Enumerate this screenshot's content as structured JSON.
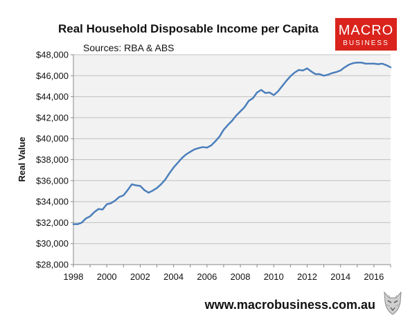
{
  "logo": {
    "line1": "MACRO",
    "line2": "BUSINESS",
    "bg_color": "#d9231c"
  },
  "footer": {
    "url": "www.macrobusiness.com.au"
  },
  "colors": {
    "line": "#4a7ebb",
    "plot_bg": "#f2f2f2",
    "grid": "#c0c0c0"
  },
  "chart_data": {
    "type": "line",
    "title": "Real Household Disposable Income per Capita",
    "subtitle": "Sources: RBA & ABS",
    "ylabel": "Real Value",
    "xlabel": "",
    "xlim": [
      1998,
      2017
    ],
    "ylim": [
      28000,
      48000
    ],
    "x_ticks": [
      1998,
      2000,
      2002,
      2004,
      2006,
      2008,
      2010,
      2012,
      2014,
      2016
    ],
    "y_ticks": [
      28000,
      30000,
      32000,
      34000,
      36000,
      38000,
      40000,
      42000,
      44000,
      46000,
      48000
    ],
    "y_tick_labels": [
      "$28,000",
      "$30,000",
      "$32,000",
      "$34,000",
      "$36,000",
      "$38,000",
      "$40,000",
      "$42,000",
      "$44,000",
      "$46,000",
      "$48,000"
    ],
    "grid": "horizontal",
    "series": [
      {
        "x": [
          1998.0,
          1998.25,
          1998.5,
          1998.75,
          1999.0,
          1999.25,
          1999.5,
          1999.75,
          2000.0,
          2000.25,
          2000.5,
          2000.75,
          2001.0,
          2001.25,
          2001.5,
          2001.75,
          2002.0,
          2002.25,
          2002.5,
          2002.75,
          2003.0,
          2003.25,
          2003.5,
          2003.75,
          2004.0,
          2004.25,
          2004.5,
          2004.75,
          2005.0,
          2005.25,
          2005.5,
          2005.75,
          2006.0,
          2006.25,
          2006.5,
          2006.75,
          2007.0,
          2007.25,
          2007.5,
          2007.75,
          2008.0,
          2008.25,
          2008.5,
          2008.75,
          2009.0,
          2009.25,
          2009.5,
          2009.75,
          2010.0,
          2010.25,
          2010.5,
          2010.75,
          2011.0,
          2011.25,
          2011.5,
          2011.75,
          2012.0,
          2012.25,
          2012.5,
          2012.75,
          2013.0,
          2013.25,
          2013.5,
          2013.75,
          2014.0,
          2014.25,
          2014.5,
          2014.75,
          2015.0,
          2015.25,
          2015.5,
          2015.75,
          2016.0,
          2016.25,
          2016.5,
          2016.75,
          2017.0
        ],
        "values": [
          31850,
          31850,
          32000,
          32400,
          32600,
          33000,
          33300,
          33250,
          33750,
          33850,
          34100,
          34450,
          34600,
          35100,
          35650,
          35550,
          35500,
          35100,
          34850,
          35050,
          35300,
          35650,
          36100,
          36700,
          37250,
          37700,
          38150,
          38500,
          38750,
          38980,
          39100,
          39200,
          39150,
          39350,
          39750,
          40200,
          40850,
          41300,
          41700,
          42200,
          42600,
          43000,
          43600,
          43850,
          44400,
          44650,
          44350,
          44400,
          44150,
          44500,
          45000,
          45500,
          45950,
          46300,
          46550,
          46500,
          46700,
          46400,
          46150,
          46150,
          46000,
          46100,
          46250,
          46350,
          46500,
          46800,
          47050,
          47200,
          47250,
          47250,
          47150,
          47150,
          47150,
          47100,
          47150,
          47000,
          46800
        ]
      }
    ]
  }
}
